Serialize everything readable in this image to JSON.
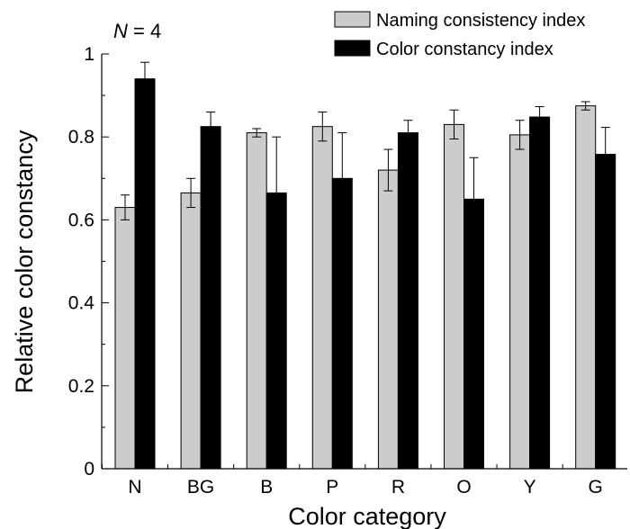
{
  "chart_data": {
    "type": "bar",
    "annotation": {
      "italic": "N",
      "rest": " = 4"
    },
    "xlabel": "Color category",
    "ylabel": "Relative color constancy",
    "ylim": [
      0,
      1
    ],
    "yticks": [
      0,
      0.2,
      0.4,
      0.6,
      0.8,
      1
    ],
    "ytick_labels": [
      "0",
      "0.2",
      "0.4",
      "0.6",
      "0.8",
      "1"
    ],
    "categories": [
      "N",
      "BG",
      "B",
      "P",
      "R",
      "O",
      "Y",
      "G"
    ],
    "legend_position": "top-right",
    "grid": false,
    "series": [
      {
        "name": "Naming consistency index",
        "color": "#cccccc",
        "values": [
          0.63,
          0.665,
          0.81,
          0.825,
          0.72,
          0.83,
          0.805,
          0.875
        ],
        "errors": [
          0.03,
          0.035,
          0.01,
          0.035,
          0.05,
          0.035,
          0.035,
          0.01
        ]
      },
      {
        "name": "Color constancy index",
        "color": "#000000",
        "values": [
          0.94,
          0.825,
          0.665,
          0.7,
          0.81,
          0.65,
          0.848,
          0.758
        ],
        "errors": [
          0.04,
          0.035,
          0.135,
          0.11,
          0.03,
          0.1,
          0.025,
          0.065
        ]
      }
    ]
  }
}
